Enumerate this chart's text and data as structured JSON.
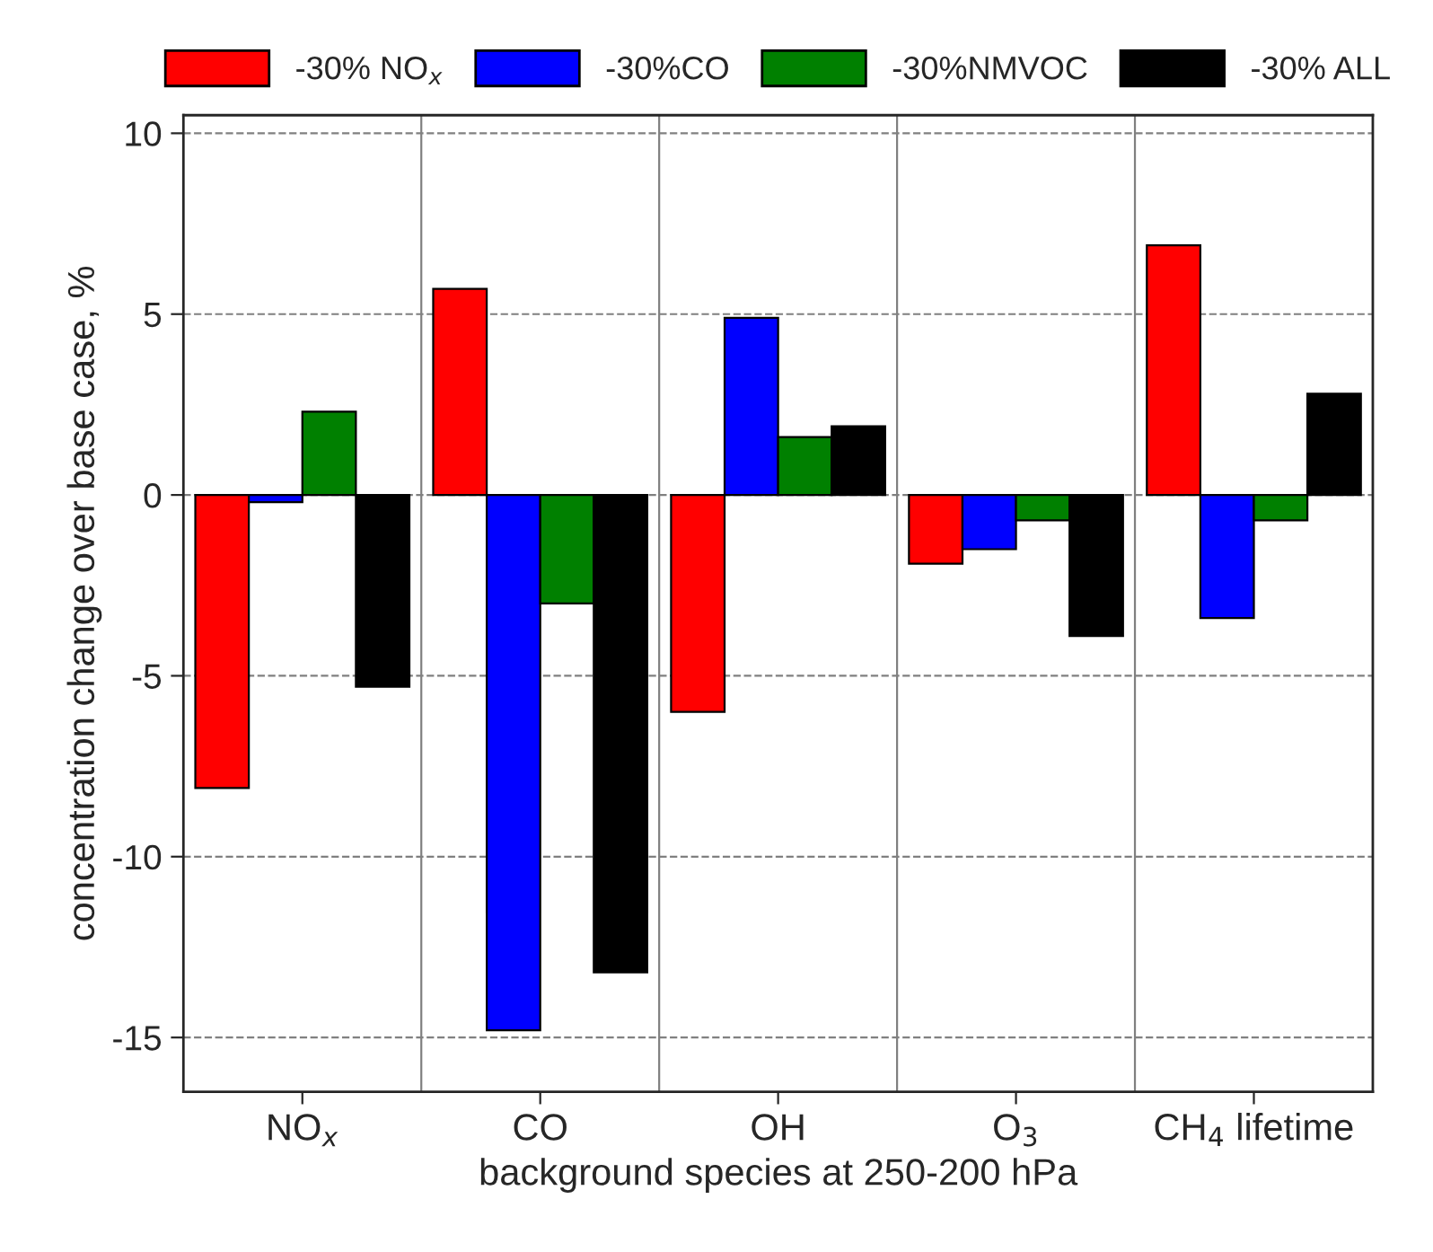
{
  "chart_data": {
    "type": "bar",
    "xlabel": "background species at 250-200 hPa",
    "ylabel": "concentration change over base case, %",
    "categories": [
      "NO$_{x}$",
      "CO",
      "OH",
      "O$_{3}$",
      "CH$_{4}$ lifetime"
    ],
    "series": [
      {
        "name": "-30% NO$_{x}$",
        "color": "#ff0000",
        "values": [
          -8.1,
          5.7,
          -6.0,
          -1.9,
          6.9
        ]
      },
      {
        "name": "-30%CO",
        "color": "#0000ff",
        "values": [
          -0.2,
          -14.8,
          4.9,
          -1.5,
          -3.4
        ]
      },
      {
        "name": "-30%NMVOC",
        "color": "#008000",
        "values": [
          2.3,
          -3.0,
          1.6,
          -0.7,
          -0.7
        ]
      },
      {
        "name": "-30% ALL",
        "color": "#000000",
        "values": [
          -5.3,
          -13.2,
          1.9,
          -3.9,
          2.8
        ]
      }
    ],
    "ylim": [
      -16.5,
      10.5
    ],
    "yticks": [
      -15,
      -10,
      -5,
      0,
      5,
      10
    ],
    "grid": "y",
    "legend": "top"
  }
}
